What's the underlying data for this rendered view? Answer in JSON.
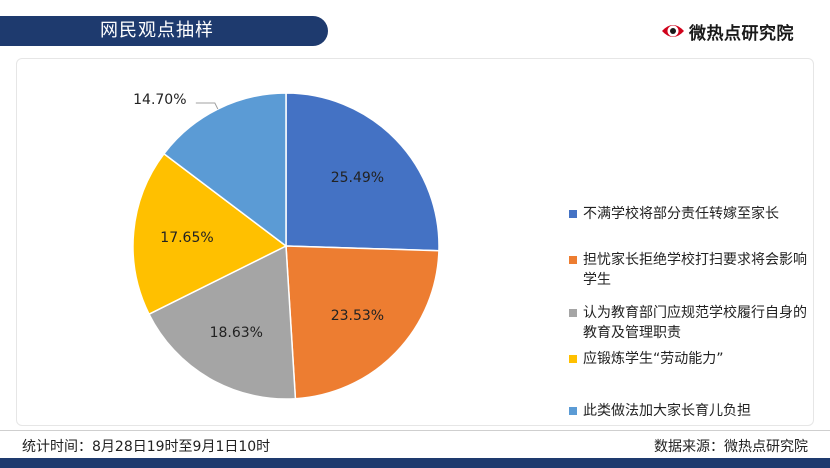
{
  "header": {
    "title": "网民观点抽样"
  },
  "brand": {
    "name": "微热点研究院"
  },
  "chart_data": {
    "type": "pie",
    "categories": [
      "不满学校将部分责任转嫁至家长",
      "担忧家长拒绝学校打扫要求将会影响学生",
      "认为教育部门应规范学校履行自身的教育及管理职责",
      "应锻炼学生“劳动能力”",
      "此类做法加大家长育儿负担"
    ],
    "values": [
      25.49,
      23.53,
      18.63,
      17.65,
      14.7
    ],
    "labels": [
      "25.49%",
      "23.53%",
      "18.63%",
      "17.65%",
      "14.70%"
    ],
    "colors": [
      "#4472c4",
      "#ed7d31",
      "#a5a5a5",
      "#ffc000",
      "#5b9bd5"
    ],
    "legend": "right"
  },
  "legend_items": [
    {
      "label": "不满学校将部分责任转嫁至家长"
    },
    {
      "label": "担忧家长拒绝学校打扫要求将会影响学生"
    },
    {
      "label": "认为教育部门应规范学校履行自身的教育及管理职责"
    },
    {
      "label": "应锻炼学生“劳动能力”"
    },
    {
      "label": "此类做法加大家长育儿负担"
    }
  ],
  "footer": {
    "time_range": "统计时间：8月28日19时至9月1日10时",
    "source": "数据来源：微热点研究院"
  }
}
